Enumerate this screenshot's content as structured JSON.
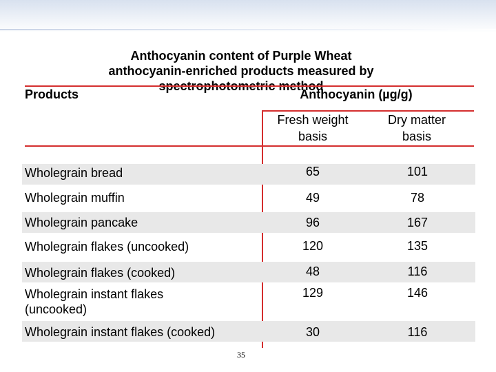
{
  "slide": {
    "title": "Anthocyanin content of Purple Wheat anthocyanin-enriched products measured by spectrophotometric method",
    "page_number": "35"
  },
  "table": {
    "header_products": "Products",
    "header_anthocyanin": "Anthocyanin (µg/g)",
    "subheader_fresh": "Fresh weight basis",
    "subheader_dry": "Dry matter basis",
    "rows": [
      {
        "product": "Wholegrain bread",
        "fresh": "65",
        "dry": "101"
      },
      {
        "product": "Wholegrain muffin",
        "fresh": "49",
        "dry": "78"
      },
      {
        "product": "Wholegrain pancake",
        "fresh": "96",
        "dry": "167"
      },
      {
        "product": "Wholegrain flakes (uncooked)",
        "fresh": "120",
        "dry": "135"
      },
      {
        "product": "Wholegrain flakes (cooked)",
        "fresh": "48",
        "dry": "116"
      },
      {
        "product": "Wholegrain  instant flakes (uncooked)",
        "fresh": "129",
        "dry": "146"
      },
      {
        "product": "Wholegrain instant flakes (cooked)",
        "fresh": "30",
        "dry": "116"
      }
    ]
  },
  "colors": {
    "rule": "#d42e2e",
    "row_shade": "#e8e8e8",
    "band": "#d8e1ef"
  }
}
